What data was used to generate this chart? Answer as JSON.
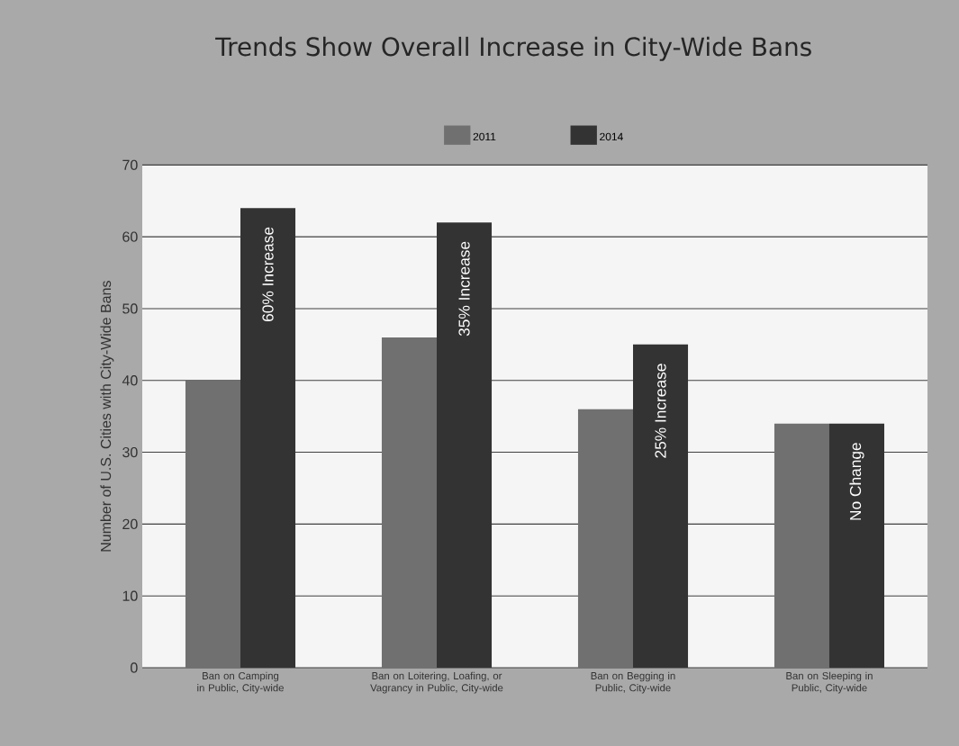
{
  "chart_data": {
    "type": "bar",
    "title": "Trends Show Overall Increase in City-Wide Bans",
    "ylabel": "Number of U.S. Cities with City-Wide Bans",
    "categories": [
      "Ban on Camping in Public, City-wide",
      "Ban on Loitering, Loafing, or Vagrancy in Public, City-wide",
      "Ban on Begging in Public, City-wide",
      "Ban on Sleeping in Public, City-wide"
    ],
    "series": [
      {
        "name": "2011",
        "color": "#707070",
        "values": [
          40,
          46,
          36,
          34
        ]
      },
      {
        "name": "2014",
        "color": "#333333",
        "values": [
          64,
          62,
          45,
          34
        ]
      }
    ],
    "annotations": [
      {
        "text": "60% Increase",
        "x": "Ban on Camping in Public, City-wide",
        "y": 64
      },
      {
        "text": "35% Increase",
        "x": "Ban on Loitering, Loafing, or Vagrancy in Public, City-wide",
        "y": 62
      },
      {
        "text": "25% Increase",
        "x": "Ban on Begging in Public, City-wide",
        "y": 45
      },
      {
        "text": "No Change",
        "x": "Ban on Sleeping in Public, City-wide",
        "y": 34
      }
    ],
    "ylim": [
      0,
      70
    ],
    "yticks": [
      0,
      10,
      20,
      30,
      40,
      50,
      60,
      70
    ],
    "grid": "y",
    "legend": "top"
  }
}
